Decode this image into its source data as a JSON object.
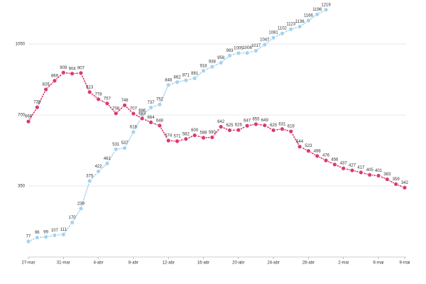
{
  "chart_data": {
    "type": "line",
    "categories": [
      "27-mar",
      null,
      null,
      null,
      "31-mar",
      null,
      null,
      null,
      "4-abr",
      null,
      null,
      null,
      "8-abr",
      null,
      null,
      null,
      "12-abr",
      null,
      null,
      null,
      "16-abr",
      null,
      null,
      null,
      "20-abr",
      null,
      null,
      null,
      "24-abr",
      null,
      null,
      null,
      "28-abr",
      null,
      null,
      null,
      "2-mai",
      null,
      null,
      null,
      "6-mai",
      null,
      null,
      "9-mai"
    ],
    "series": [
      {
        "name": "blue",
        "color": "#a3d3ee",
        "values": [
          77,
          96,
          99,
          107,
          111,
          170,
          239,
          375,
          422,
          461,
          531,
          537,
          616,
          696,
          737,
          752,
          848,
          862,
          871,
          881,
          918,
          938,
          958,
          993,
          1005,
          1006,
          1017,
          1047,
          1081,
          1102,
          1123,
          1136,
          1166,
          1196,
          1219,
          null,
          null,
          null,
          null,
          null,
          null,
          null,
          null,
          null
        ]
      },
      {
        "name": "pink",
        "color": "#d93a6e",
        "values": [
          668,
          738,
          826,
          869,
          909,
          904,
          907,
          813,
          778,
          757,
          708,
          748,
          707,
          683,
          664,
          648,
          574,
          571,
          582,
          600,
          588,
          590,
          642,
          625,
          626,
          647,
          655,
          649,
          625,
          631,
          619,
          544,
          523,
          498,
          476,
          456,
          437,
          427,
          417,
          405,
          401,
          383,
          359,
          342
        ]
      }
    ],
    "ylim": [
      0,
      1260
    ],
    "yticks": [
      350,
      700,
      1050
    ],
    "grid": true
  }
}
